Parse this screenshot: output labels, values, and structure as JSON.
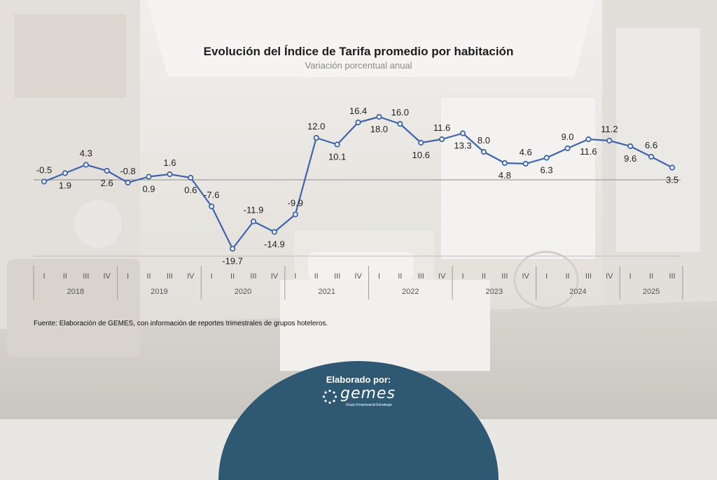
{
  "title": "Evolución del Índice de Tarifa promedio por habitación",
  "subtitle": "Variación porcentual anual",
  "source": "Fuente: Elaboración de GEMES, con información de reportes trimestrales de grupos hoteleros.",
  "footer": {
    "label": "Elaborado por:",
    "logo_text": "gemes",
    "logo_tagline": "Grupo Empresarial Estrategia"
  },
  "chart_data": {
    "type": "line",
    "title": "Evolución del Índice de Tarifa promedio por habitación",
    "subtitle": "Variación porcentual anual",
    "xlabel": "",
    "ylabel": "",
    "ylim": [
      -22,
      20
    ],
    "grid": false,
    "legend": "none",
    "line_color": "#3d64ad",
    "quarters": [
      "I",
      "II",
      "III",
      "IV",
      "I",
      "II",
      "III",
      "IV",
      "I",
      "II",
      "III",
      "IV",
      "I",
      "II",
      "III",
      "IV",
      "I",
      "II",
      "III",
      "IV",
      "I",
      "II",
      "III",
      "IV",
      "I",
      "II",
      "III",
      "IV",
      "I",
      "II",
      "III"
    ],
    "years": [
      {
        "label": "2018",
        "count": 4
      },
      {
        "label": "2019",
        "count": 4
      },
      {
        "label": "2020",
        "count": 4
      },
      {
        "label": "2021",
        "count": 4
      },
      {
        "label": "2022",
        "count": 4
      },
      {
        "label": "2023",
        "count": 4
      },
      {
        "label": "2024",
        "count": 4
      },
      {
        "label": "2025",
        "count": 3
      }
    ],
    "series": [
      {
        "values": [
          -0.5,
          1.9,
          4.3,
          2.6,
          -0.8,
          0.9,
          1.6,
          0.6,
          -7.6,
          -19.7,
          -11.9,
          -14.9,
          -9.9,
          12.0,
          10.1,
          16.4,
          18.0,
          16.0,
          10.6,
          11.6,
          13.3,
          8.0,
          4.8,
          4.6,
          6.3,
          9.0,
          11.6,
          11.2,
          9.6,
          6.6,
          3.5
        ],
        "labels": [
          "-0.5",
          "1.9",
          "4.3",
          "2.6",
          "-0.8",
          "0.9",
          "1.6",
          "0.6",
          "-7.6",
          "-19.7",
          "-11.9",
          "-14.9",
          "-9.9",
          "12.0",
          "10.1",
          "16.4",
          "18.0",
          "16.0",
          "10.6",
          "11.6",
          "13.3",
          "8.0",
          "4.8",
          "4.6",
          "6.3",
          "9.0",
          "11.6",
          "11.2",
          "9.6",
          "6.6",
          "3.5"
        ]
      }
    ]
  }
}
